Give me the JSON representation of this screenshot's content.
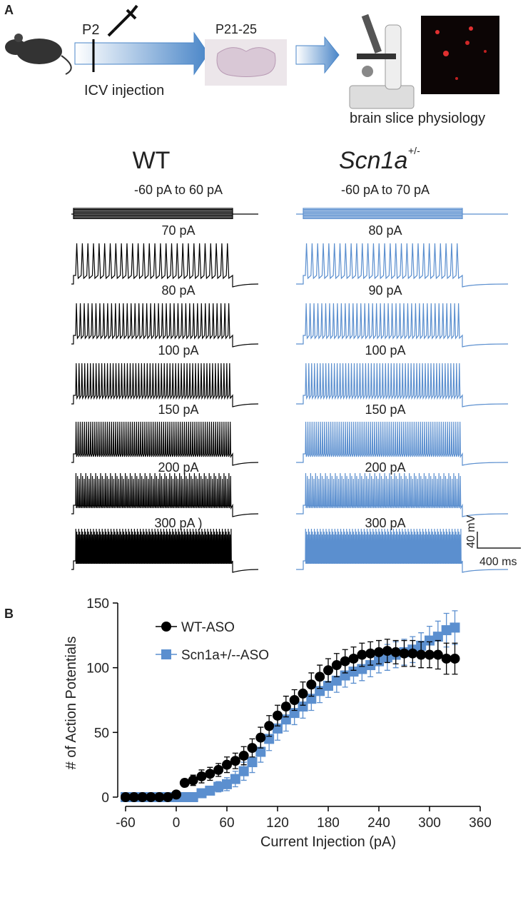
{
  "panel_a": {
    "label": "A",
    "p2": "P2",
    "injection": "ICV injection",
    "age": "P21-25",
    "physiology": "brain slice physiology",
    "genotype_1": "WT",
    "genotype_2": {
      "name": "Scn1a",
      "superscript": "+/-"
    },
    "wt_traces": [
      "-60 pA to 60 pA",
      "70 pA",
      "80 pA",
      "100 pA",
      "150 pA",
      "200 pA",
      "300 pA )"
    ],
    "mut_traces": [
      "-60 pA to 70 pA",
      "80 pA",
      "90 pA",
      "100 pA",
      "150 pA",
      "200 pA",
      "300 pA"
    ],
    "scale_v": "40 mV",
    "scale_t": "400 ms"
  },
  "chart_data": {
    "type": "scatter",
    "panel_label": "B",
    "x_label": "Current Injection (pA)",
    "y_label": "# of Action Potentials",
    "x": [
      -60,
      -50,
      -40,
      -30,
      -20,
      -10,
      0,
      10,
      20,
      30,
      40,
      50,
      60,
      70,
      80,
      90,
      100,
      110,
      120,
      130,
      140,
      150,
      160,
      170,
      180,
      190,
      200,
      210,
      220,
      230,
      240,
      250,
      260,
      270,
      280,
      290,
      300,
      310,
      320,
      330
    ],
    "series": [
      {
        "name": "WT-ASO",
        "color": "#000000",
        "marker": "circle",
        "values": [
          0,
          0,
          0,
          0,
          0,
          0,
          2,
          11,
          13,
          16,
          18,
          21,
          25,
          28,
          32,
          38,
          46,
          55,
          63,
          70,
          75,
          80,
          87,
          93,
          98,
          102,
          105,
          107,
          110,
          111,
          112,
          113,
          112,
          111,
          111,
          110,
          110,
          110,
          107,
          107
        ],
        "errors": [
          0,
          0,
          0,
          0,
          0,
          0,
          1,
          3,
          4,
          5,
          5,
          5,
          6,
          6,
          7,
          7,
          8,
          8,
          8,
          8,
          8,
          9,
          9,
          9,
          9,
          9,
          9,
          9,
          9,
          9,
          9,
          9,
          9,
          10,
          10,
          10,
          10,
          11,
          12,
          12
        ]
      },
      {
        "name": "Scn1a+/--ASO",
        "color": "#5b8fcf",
        "marker": "square",
        "values": [
          0,
          0,
          0,
          0,
          0,
          0,
          0,
          0,
          0,
          3,
          5,
          8,
          10,
          14,
          20,
          27,
          35,
          45,
          53,
          60,
          65,
          70,
          76,
          82,
          86,
          90,
          94,
          97,
          99,
          102,
          105,
          108,
          110,
          112,
          114,
          117,
          121,
          124,
          129,
          131
        ],
        "errors": [
          0,
          0,
          0,
          0,
          0,
          0,
          0,
          0,
          1,
          2,
          3,
          4,
          5,
          6,
          7,
          8,
          8,
          9,
          9,
          9,
          9,
          9,
          9,
          9,
          9,
          9,
          9,
          9,
          9,
          9,
          9,
          10,
          10,
          10,
          10,
          10,
          11,
          12,
          13,
          13
        ]
      }
    ],
    "xlim": [
      -60,
      360
    ],
    "ylim": [
      0,
      150
    ],
    "xticks": [
      -60,
      0,
      60,
      120,
      180,
      240,
      300,
      360
    ],
    "yticks": [
      0,
      50,
      100,
      150
    ]
  }
}
